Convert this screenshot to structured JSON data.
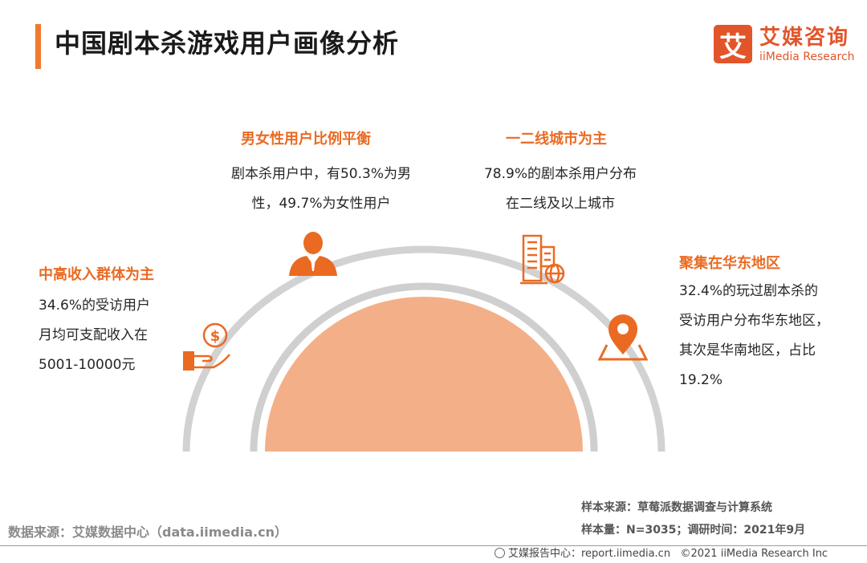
{
  "header": {
    "title": "中国剧本杀游戏用户画像分析"
  },
  "logo": {
    "mark": "艾",
    "name_cn": "艾媒咨询",
    "name_en": "iiMedia Research"
  },
  "items": {
    "gender": {
      "heading": "男女性用户比例平衡",
      "lines": [
        "剧本杀用户中，有50.3%为男",
        "性，49.7%为女性用户"
      ],
      "icon": "person-icon"
    },
    "city": {
      "heading": "一二线城市为主",
      "lines": [
        "78.9%的剧本杀用户分布",
        "在二线及以上城市"
      ],
      "icon": "city-building-icon"
    },
    "income": {
      "heading": "中高收入群体为主",
      "lines": [
        "34.6%的受访用户",
        "月均可支配收入在",
        "5001-10000元"
      ],
      "icon": "hand-coin-icon"
    },
    "region": {
      "heading": "聚集在华东地区",
      "lines": [
        "32.4%的玩过剧本杀的",
        "受访用户分布华东地区，",
        "其次是华南地区，占比",
        "19.2%"
      ],
      "icon": "location-pin-icon"
    }
  },
  "footer": {
    "source_left": "数据来源：艾媒数据中心（data.iimedia.cn）",
    "sample_source": "样本来源：草莓派数据调查与计算系统",
    "sample_size": "样本量：N=3035；调研时间：2021年9月",
    "report_center": "艾媒报告中心：report.iimedia.cn",
    "copyright": "©2021  iiMedia Research  Inc"
  },
  "colors": {
    "accent": "#ea6a22",
    "semicircle": "#f3b088",
    "arc": "#d0d0d0"
  }
}
